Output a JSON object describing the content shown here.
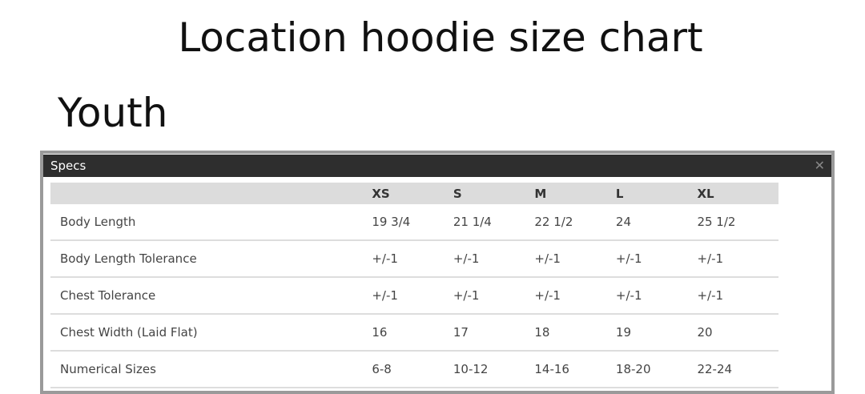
{
  "page_title": "Location hoodie size chart",
  "section_title": "Youth",
  "panel": {
    "title": "Specs",
    "close_icon": "close-icon"
  },
  "table": {
    "columns": [
      "XS",
      "S",
      "M",
      "L",
      "XL"
    ],
    "rows": [
      {
        "label": "Body Length",
        "values": [
          "19 3/4",
          "21 1/4",
          "22 1/2",
          "24",
          "25 1/2"
        ]
      },
      {
        "label": "Body Length Tolerance",
        "values": [
          "+/-1",
          "+/-1",
          "+/-1",
          "+/-1",
          "+/-1"
        ]
      },
      {
        "label": "Chest Tolerance",
        "values": [
          "+/-1",
          "+/-1",
          "+/-1",
          "+/-1",
          "+/-1"
        ]
      },
      {
        "label": "Chest Width (Laid Flat)",
        "values": [
          "16",
          "17",
          "18",
          "19",
          "20"
        ]
      },
      {
        "label": "Numerical Sizes",
        "values": [
          "6-8",
          "10-12",
          "14-16",
          "18-20",
          "22-24"
        ]
      }
    ]
  }
}
